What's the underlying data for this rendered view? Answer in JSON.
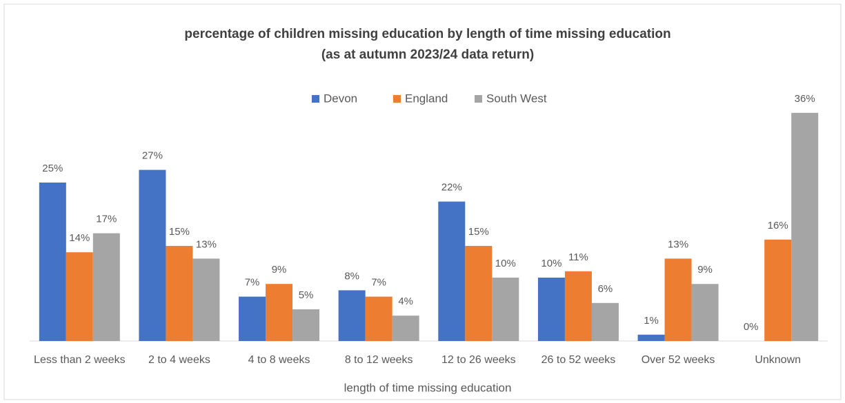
{
  "chart_data": {
    "type": "bar",
    "title": "percentage of children missing education by length of time missing education",
    "subtitle": "(as at autumn 2023/24 data return)",
    "x_label": "length of time missing education",
    "categories": [
      "Less than 2 weeks",
      "2 to 4 weeks",
      "4 to 8 weeks",
      "8 to 12 weeks",
      "12 to 26 weeks",
      "26 to 52 weeks",
      "Over 52 weeks",
      "Unknown"
    ],
    "series": [
      {
        "name": "Devon",
        "color": "#4472c4",
        "values": [
          25,
          27,
          7,
          8,
          22,
          10,
          1,
          0
        ],
        "value_labels": [
          "25%",
          "27%",
          "7%",
          "8%",
          "22%",
          "10%",
          "1%",
          "0%"
        ]
      },
      {
        "name": "England",
        "color": "#ed7d31",
        "values": [
          14,
          15,
          9,
          7,
          15,
          11,
          13,
          16
        ],
        "value_labels": [
          "14%",
          "15%",
          "9%",
          "7%",
          "15%",
          "11%",
          "13%",
          "16%"
        ]
      },
      {
        "name": "South West",
        "color": "#a5a5a5",
        "values": [
          17,
          13,
          5,
          4,
          10,
          6,
          9,
          36
        ],
        "value_labels": [
          "17%",
          "13%",
          "5%",
          "4%",
          "10%",
          "6%",
          "9%",
          "36%"
        ]
      }
    ],
    "ylim": [
      0,
      40
    ],
    "legend": "top"
  }
}
